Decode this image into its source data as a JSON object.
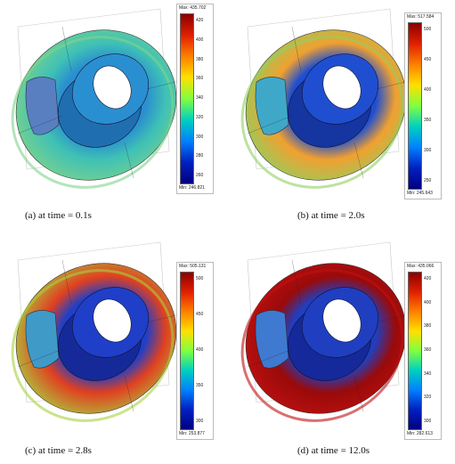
{
  "panels": [
    {
      "caption": "(a)  at time = 0.1s",
      "colorbar": {
        "max_label": "Max: 435.702",
        "min_label": "Min: 246.821",
        "ticks": [
          "420",
          "400",
          "380",
          "360",
          "340",
          "320",
          "300",
          "280",
          "260"
        ]
      },
      "colors": {
        "disk": "#3fc1b5",
        "disk_edge": "#7fd38a",
        "hub": "#2a8fd0",
        "hub_dark": "#1f6fb0",
        "pad": "#5a7fc0"
      }
    },
    {
      "caption": "(b)  at time = 2.0s",
      "colorbar": {
        "max_label": "Max: 517.584",
        "min_label": "Min: 245.643",
        "ticks": [
          "500",
          "450",
          "400",
          "350",
          "300",
          "250"
        ]
      },
      "colors": {
        "disk": "#f0a030",
        "disk_edge": "#8fd060",
        "hub": "#1f4fd0",
        "hub_dark": "#1535a0",
        "pad": "#3fa8c8"
      }
    },
    {
      "caption": "(c)  at time = 2.8s",
      "colorbar": {
        "max_label": "Max: 505.131",
        "min_label": "Min: 253.877",
        "ticks": [
          "500",
          "450",
          "400",
          "350",
          "300"
        ]
      },
      "colors": {
        "disk": "#e04020",
        "disk_edge": "#a8d040",
        "hub": "#1f3fc8",
        "hub_dark": "#152a98",
        "pad": "#3f9ac8"
      }
    },
    {
      "caption": "(d)  at time = 12.0s",
      "colorbar": {
        "max_label": "Max: 435.066",
        "min_label": "Min: 282.613",
        "ticks": [
          "420",
          "400",
          "380",
          "360",
          "340",
          "320",
          "300"
        ]
      },
      "colors": {
        "disk": "#9a0a0a",
        "disk_edge": "#c01010",
        "hub": "#1f3fc0",
        "hub_dark": "#15299a",
        "pad": "#3f7ad0"
      }
    }
  ]
}
